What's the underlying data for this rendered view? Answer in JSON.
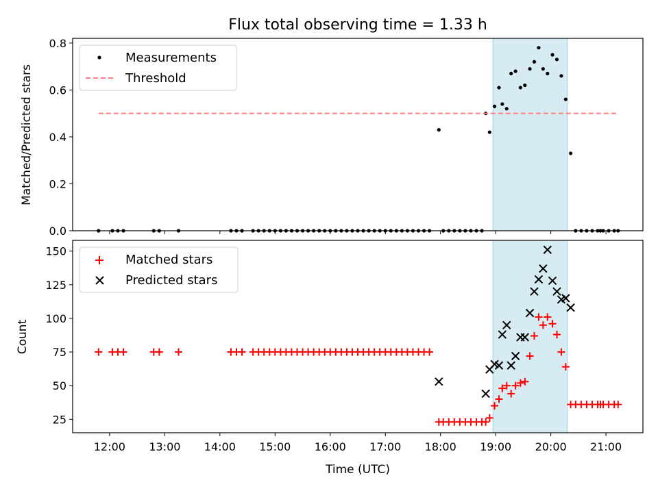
{
  "chart_data": {
    "type": "scatter",
    "title": "Flux total observing time = 1.33 h",
    "xlabel": "Time (UTC)",
    "x_unit": "hours UTC",
    "xlim": [
      11.33,
      21.67
    ],
    "x_ticks": [
      12,
      13,
      14,
      15,
      16,
      17,
      18,
      19,
      20,
      21
    ],
    "x_tick_labels": [
      "12:00",
      "13:00",
      "14:00",
      "15:00",
      "16:00",
      "17:00",
      "18:00",
      "19:00",
      "20:00",
      "21:00"
    ],
    "shaded_region": {
      "x": [
        18.95,
        20.3
      ],
      "color": "#add8e6"
    },
    "panels": [
      {
        "ylabel": "Matched/Predicted stars",
        "ylim": [
          0,
          0.82
        ],
        "y_ticks": [
          0,
          0.2,
          0.4,
          0.6,
          0.8
        ],
        "y_tick_labels": [
          "0.0",
          "0.2",
          "0.4",
          "0.6",
          "0.8"
        ],
        "legend_position": "top-left",
        "series": [
          {
            "name": "Measurements",
            "marker": "dot",
            "color": "#000000",
            "points": [
              [
                11.8,
                0
              ],
              [
                12.05,
                0
              ],
              [
                12.15,
                0
              ],
              [
                12.25,
                0
              ],
              [
                12.8,
                0
              ],
              [
                12.9,
                0
              ],
              [
                13.25,
                0
              ],
              [
                14.2,
                0
              ],
              [
                14.3,
                0
              ],
              [
                14.4,
                0
              ],
              [
                14.6,
                0
              ],
              [
                14.7,
                0
              ],
              [
                14.8,
                0
              ],
              [
                14.9,
                0
              ],
              [
                15.0,
                0
              ],
              [
                15.1,
                0
              ],
              [
                15.2,
                0
              ],
              [
                15.3,
                0
              ],
              [
                15.4,
                0
              ],
              [
                15.5,
                0
              ],
              [
                15.6,
                0
              ],
              [
                15.7,
                0
              ],
              [
                15.8,
                0
              ],
              [
                15.9,
                0
              ],
              [
                16.0,
                0
              ],
              [
                16.1,
                0
              ],
              [
                16.2,
                0
              ],
              [
                16.3,
                0
              ],
              [
                16.4,
                0
              ],
              [
                16.5,
                0
              ],
              [
                16.6,
                0
              ],
              [
                16.7,
                0
              ],
              [
                16.8,
                0
              ],
              [
                16.9,
                0
              ],
              [
                17.0,
                0
              ],
              [
                17.1,
                0
              ],
              [
                17.2,
                0
              ],
              [
                17.3,
                0
              ],
              [
                17.4,
                0
              ],
              [
                17.5,
                0
              ],
              [
                17.6,
                0
              ],
              [
                17.7,
                0
              ],
              [
                17.8,
                0
              ],
              [
                17.97,
                0.43
              ],
              [
                18.05,
                0
              ],
              [
                18.15,
                0
              ],
              [
                18.25,
                0
              ],
              [
                18.35,
                0
              ],
              [
                18.45,
                0
              ],
              [
                18.55,
                0
              ],
              [
                18.65,
                0
              ],
              [
                18.75,
                0
              ],
              [
                18.82,
                0.5
              ],
              [
                18.89,
                0.42
              ],
              [
                18.98,
                0.53
              ],
              [
                19.06,
                0.61
              ],
              [
                19.12,
                0.54
              ],
              [
                19.2,
                0.52
              ],
              [
                19.28,
                0.67
              ],
              [
                19.36,
                0.68
              ],
              [
                19.45,
                0.61
              ],
              [
                19.53,
                0.62
              ],
              [
                19.62,
                0.69
              ],
              [
                19.7,
                0.72
              ],
              [
                19.78,
                0.78
              ],
              [
                19.86,
                0.69
              ],
              [
                19.94,
                0.67
              ],
              [
                20.03,
                0.75
              ],
              [
                20.11,
                0.73
              ],
              [
                20.19,
                0.66
              ],
              [
                20.27,
                0.56
              ],
              [
                20.36,
                0.33
              ],
              [
                20.45,
                0
              ],
              [
                20.55,
                0
              ],
              [
                20.65,
                0
              ],
              [
                20.75,
                0
              ],
              [
                20.85,
                0
              ],
              [
                20.9,
                0
              ],
              [
                20.95,
                0
              ],
              [
                21.05,
                0
              ],
              [
                21.15,
                0
              ],
              [
                21.22,
                0
              ]
            ]
          },
          {
            "name": "Threshold",
            "marker": "dashed-line",
            "color": "#ff7f7f",
            "points": [
              [
                11.8,
                0.5
              ],
              [
                21.22,
                0.5
              ]
            ]
          }
        ]
      },
      {
        "ylabel": "Count",
        "ylim": [
          15,
          158
        ],
        "y_ticks": [
          25,
          50,
          75,
          100,
          125,
          150
        ],
        "y_tick_labels": [
          "25",
          "50",
          "75",
          "100",
          "125",
          "150"
        ],
        "legend_position": "top-left",
        "series": [
          {
            "name": "Matched stars",
            "marker": "plus",
            "color": "#ff0000",
            "points": [
              [
                11.8,
                75
              ],
              [
                12.05,
                75
              ],
              [
                12.15,
                75
              ],
              [
                12.25,
                75
              ],
              [
                12.8,
                75
              ],
              [
                12.9,
                75
              ],
              [
                13.25,
                75
              ],
              [
                14.2,
                75
              ],
              [
                14.3,
                75
              ],
              [
                14.4,
                75
              ],
              [
                14.6,
                75
              ],
              [
                14.7,
                75
              ],
              [
                14.8,
                75
              ],
              [
                14.9,
                75
              ],
              [
                15.0,
                75
              ],
              [
                15.1,
                75
              ],
              [
                15.2,
                75
              ],
              [
                15.3,
                75
              ],
              [
                15.4,
                75
              ],
              [
                15.5,
                75
              ],
              [
                15.6,
                75
              ],
              [
                15.7,
                75
              ],
              [
                15.8,
                75
              ],
              [
                15.9,
                75
              ],
              [
                16.0,
                75
              ],
              [
                16.1,
                75
              ],
              [
                16.2,
                75
              ],
              [
                16.3,
                75
              ],
              [
                16.4,
                75
              ],
              [
                16.5,
                75
              ],
              [
                16.6,
                75
              ],
              [
                16.7,
                75
              ],
              [
                16.8,
                75
              ],
              [
                16.9,
                75
              ],
              [
                17.0,
                75
              ],
              [
                17.1,
                75
              ],
              [
                17.2,
                75
              ],
              [
                17.3,
                75
              ],
              [
                17.4,
                75
              ],
              [
                17.5,
                75
              ],
              [
                17.6,
                75
              ],
              [
                17.7,
                75
              ],
              [
                17.8,
                75
              ],
              [
                17.97,
                23
              ],
              [
                18.05,
                23
              ],
              [
                18.15,
                23
              ],
              [
                18.25,
                23
              ],
              [
                18.35,
                23
              ],
              [
                18.45,
                23
              ],
              [
                18.55,
                23
              ],
              [
                18.65,
                23
              ],
              [
                18.75,
                23
              ],
              [
                18.82,
                23
              ],
              [
                18.89,
                26
              ],
              [
                18.98,
                35
              ],
              [
                19.06,
                40
              ],
              [
                19.12,
                48
              ],
              [
                19.2,
                50
              ],
              [
                19.28,
                44
              ],
              [
                19.36,
                50
              ],
              [
                19.45,
                52
              ],
              [
                19.53,
                53
              ],
              [
                19.62,
                72
              ],
              [
                19.7,
                87
              ],
              [
                19.78,
                101
              ],
              [
                19.86,
                95
              ],
              [
                19.94,
                101
              ],
              [
                20.03,
                96
              ],
              [
                20.11,
                88
              ],
              [
                20.19,
                75
              ],
              [
                20.27,
                64
              ],
              [
                20.36,
                36
              ],
              [
                20.45,
                36
              ],
              [
                20.55,
                36
              ],
              [
                20.65,
                36
              ],
              [
                20.75,
                36
              ],
              [
                20.85,
                36
              ],
              [
                20.9,
                36
              ],
              [
                20.95,
                36
              ],
              [
                21.05,
                36
              ],
              [
                21.15,
                36
              ],
              [
                21.22,
                36
              ]
            ]
          },
          {
            "name": "Predicted stars",
            "marker": "x",
            "color": "#000000",
            "points": [
              [
                17.97,
                53
              ],
              [
                18.82,
                44
              ],
              [
                18.89,
                62
              ],
              [
                18.98,
                66
              ],
              [
                19.06,
                65
              ],
              [
                19.12,
                88
              ],
              [
                19.2,
                95
              ],
              [
                19.28,
                65
              ],
              [
                19.36,
                72
              ],
              [
                19.45,
                86
              ],
              [
                19.53,
                86
              ],
              [
                19.62,
                104
              ],
              [
                19.7,
                120
              ],
              [
                19.78,
                129
              ],
              [
                19.86,
                137
              ],
              [
                19.94,
                151
              ],
              [
                20.03,
                128
              ],
              [
                20.11,
                120
              ],
              [
                20.19,
                114
              ],
              [
                20.27,
                115
              ],
              [
                20.36,
                108
              ]
            ]
          }
        ]
      }
    ]
  }
}
